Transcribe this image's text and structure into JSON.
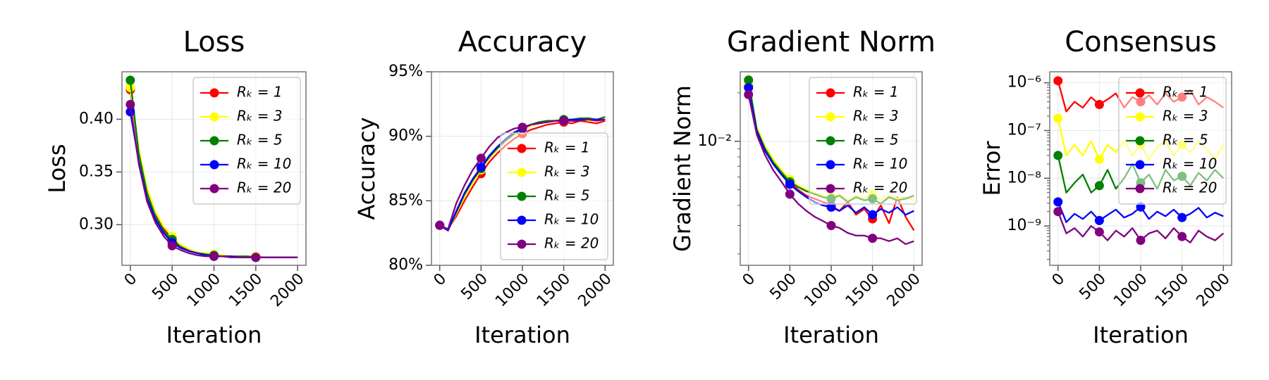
{
  "chart_data": [
    {
      "type": "line",
      "title": "Loss",
      "xlabel": "Iteration",
      "ylabel": "Loss",
      "legend": "upper right",
      "grid": true,
      "yscale": "linear",
      "markevery": 5,
      "x": [
        0,
        100,
        200,
        300,
        400,
        500,
        600,
        700,
        800,
        900,
        1000,
        1100,
        1200,
        1300,
        1400,
        1500,
        1600,
        1700,
        1800,
        1900,
        2000
      ],
      "xlim": [
        -100,
        2100
      ],
      "xticks": [
        0,
        500,
        1000,
        1500,
        2000
      ],
      "ylim": [
        0.2615,
        0.445
      ],
      "yticks": [
        {
          "value": 0.3,
          "label": "0.30"
        },
        0.35,
        {
          "value": 0.4,
          "label": "0.40"
        }
      ],
      "series": [
        {
          "name": "Rₖ = 1",
          "color": "#ff0000",
          "values": [
            0.428,
            0.37,
            0.333,
            0.31,
            0.296,
            0.287,
            0.28,
            0.276,
            0.274,
            0.272,
            0.271,
            0.271,
            0.27,
            0.27,
            0.27,
            0.27,
            0.269,
            0.269,
            0.269,
            0.269,
            0.269
          ]
        },
        {
          "name": "Rₖ = 3",
          "color": "#ffff00",
          "values": [
            0.43,
            0.372,
            0.335,
            0.312,
            0.298,
            0.289,
            0.281,
            0.277,
            0.274,
            0.273,
            0.272,
            0.271,
            0.27,
            0.27,
            0.27,
            0.27,
            0.269,
            0.269,
            0.269,
            0.269,
            0.269
          ]
        },
        {
          "name": "Rₖ = 5",
          "color": "#008000",
          "values": [
            0.437,
            0.368,
            0.33,
            0.308,
            0.294,
            0.286,
            0.279,
            0.275,
            0.273,
            0.272,
            0.271,
            0.27,
            0.27,
            0.27,
            0.27,
            0.269,
            0.269,
            0.269,
            0.269,
            0.269,
            0.269
          ]
        },
        {
          "name": "Rₖ = 10",
          "color": "#0000ff",
          "values": [
            0.407,
            0.36,
            0.325,
            0.305,
            0.292,
            0.283,
            0.278,
            0.275,
            0.273,
            0.271,
            0.27,
            0.27,
            0.27,
            0.269,
            0.269,
            0.269,
            0.269,
            0.269,
            0.269,
            0.269,
            0.269
          ]
        },
        {
          "name": "Rₖ = 20",
          "color": "#800080",
          "values": [
            0.414,
            0.358,
            0.322,
            0.302,
            0.289,
            0.28,
            0.276,
            0.273,
            0.271,
            0.27,
            0.27,
            0.27,
            0.269,
            0.269,
            0.269,
            0.269,
            0.269,
            0.269,
            0.269,
            0.269,
            0.269
          ]
        }
      ]
    },
    {
      "type": "line",
      "title": "Accuracy",
      "xlabel": "Iteration",
      "ylabel": "Accuracy",
      "legend": "lower right",
      "grid": true,
      "yscale": "linear",
      "markevery": 5,
      "x": [
        0,
        100,
        200,
        300,
        400,
        500,
        600,
        700,
        800,
        900,
        1000,
        1100,
        1200,
        1300,
        1400,
        1500,
        1600,
        1700,
        1800,
        1900,
        2000
      ],
      "xlim": [
        -100,
        2100
      ],
      "xticks": [
        0,
        500,
        1000,
        1500,
        2000
      ],
      "ylim": [
        80,
        95
      ],
      "yticks": [
        {
          "value": 80,
          "label": "80%"
        },
        {
          "value": 85,
          "label": "85%"
        },
        {
          "value": 90,
          "label": "90%"
        },
        {
          "value": 95,
          "label": "95%"
        }
      ],
      "series": [
        {
          "name": "Rₖ = 1",
          "color": "#ff0000",
          "values": [
            83.1,
            82.8,
            83.8,
            85.0,
            86.1,
            87.1,
            88.0,
            88.7,
            89.3,
            89.8,
            90.2,
            90.5,
            90.7,
            90.9,
            91.0,
            91.1,
            91.0,
            91.2,
            91.1,
            91.0,
            91.2
          ]
        },
        {
          "name": "Rₖ = 3",
          "color": "#ffff00",
          "values": [
            83.1,
            82.7,
            84.0,
            85.3,
            86.4,
            87.4,
            88.3,
            89.0,
            89.6,
            90.1,
            90.5,
            90.8,
            91.0,
            91.1,
            91.2,
            91.2,
            91.3,
            91.3,
            91.2,
            91.3,
            91.3
          ]
        },
        {
          "name": "Rₖ = 5",
          "color": "#008000",
          "values": [
            83.1,
            82.7,
            84.1,
            85.5,
            86.6,
            87.5,
            88.4,
            89.1,
            89.7,
            90.2,
            90.6,
            90.9,
            91.1,
            91.2,
            91.2,
            91.3,
            91.3,
            91.4,
            91.4,
            91.3,
            91.5
          ]
        },
        {
          "name": "Rₖ = 10",
          "color": "#0000ff",
          "values": [
            83.1,
            82.7,
            84.2,
            85.6,
            86.7,
            87.6,
            88.5,
            89.2,
            89.8,
            90.3,
            90.6,
            90.9,
            91.0,
            91.1,
            91.2,
            91.2,
            91.3,
            91.3,
            91.3,
            91.3,
            91.3
          ]
        },
        {
          "name": "Rₖ = 20",
          "color": "#800080",
          "values": [
            83.1,
            82.8,
            84.8,
            86.2,
            87.4,
            88.3,
            89.2,
            89.9,
            90.3,
            90.6,
            90.7,
            90.9,
            91.0,
            91.1,
            91.2,
            91.2,
            91.2,
            91.2,
            91.3,
            91.2,
            91.3
          ]
        }
      ]
    },
    {
      "type": "line",
      "title": "Gradient Norm",
      "xlabel": "Iteration",
      "ylabel": "Gradient Norm",
      "legend": "upper right",
      "grid": true,
      "yscale": "log",
      "markevery": 5,
      "x": [
        0,
        100,
        200,
        300,
        400,
        500,
        600,
        700,
        800,
        900,
        1000,
        1100,
        1200,
        1300,
        1400,
        1500,
        1600,
        1700,
        1800,
        1900,
        2000
      ],
      "xlim": [
        -100,
        2100
      ],
      "xticks": [
        0,
        500,
        1000,
        1500,
        2000
      ],
      "ylim": [
        0.0017,
        0.027
      ],
      "yticks": [
        {
          "value": 0.01,
          "label": "10⁻²"
        }
      ],
      "series": [
        {
          "name": "Rₖ = 1",
          "color": "#ff0000",
          "values": [
            0.0225,
            0.012,
            0.009,
            0.0074,
            0.0064,
            0.0056,
            0.005,
            0.0046,
            0.0044,
            0.0042,
            0.004,
            0.0037,
            0.0042,
            0.0035,
            0.0038,
            0.0033,
            0.004,
            0.0031,
            0.0045,
            0.0034,
            0.0028
          ]
        },
        {
          "name": "Rₖ = 3",
          "color": "#ffff00",
          "values": [
            0.023,
            0.0122,
            0.0093,
            0.0077,
            0.0066,
            0.0058,
            0.0053,
            0.005,
            0.0048,
            0.0046,
            0.0045,
            0.0047,
            0.0043,
            0.0046,
            0.0044,
            0.0047,
            0.0043,
            0.0046,
            0.0044,
            0.0045,
            0.0043
          ]
        },
        {
          "name": "Rₖ = 5",
          "color": "#008000",
          "values": [
            0.024,
            0.0118,
            0.009,
            0.0074,
            0.0064,
            0.0056,
            0.0052,
            0.0049,
            0.0047,
            0.0045,
            0.0044,
            0.0046,
            0.0042,
            0.0045,
            0.0043,
            0.0044,
            0.0041,
            0.0045,
            0.0043,
            0.0044,
            0.0046
          ]
        },
        {
          "name": "Rₖ = 10",
          "color": "#0000ff",
          "values": [
            0.0215,
            0.0115,
            0.0087,
            0.0072,
            0.0062,
            0.0054,
            0.0049,
            0.0045,
            0.0042,
            0.004,
            0.0039,
            0.0037,
            0.004,
            0.0036,
            0.0039,
            0.0035,
            0.0038,
            0.0036,
            0.0039,
            0.0035,
            0.0037
          ]
        },
        {
          "name": "Rₖ = 20",
          "color": "#800080",
          "values": [
            0.0195,
            0.011,
            0.0082,
            0.0066,
            0.0056,
            0.0047,
            0.0041,
            0.0037,
            0.0034,
            0.0032,
            0.003,
            0.0029,
            0.0027,
            0.0026,
            0.0026,
            0.0025,
            0.0025,
            0.0024,
            0.0025,
            0.0023,
            0.0024
          ]
        }
      ]
    },
    {
      "type": "line",
      "title": "Consensus",
      "xlabel": "Iteration",
      "ylabel": "Error",
      "legend": "upper right",
      "grid": true,
      "yscale": "log",
      "markevery": 5,
      "x": [
        0,
        100,
        200,
        300,
        400,
        500,
        600,
        700,
        800,
        900,
        1000,
        1100,
        1200,
        1300,
        1400,
        1500,
        1600,
        1700,
        1800,
        1900,
        2000
      ],
      "xlim": [
        -100,
        2100
      ],
      "xticks": [
        0,
        500,
        1000,
        1500,
        2000
      ],
      "ylim": [
        1.5e-10,
        1.7e-06
      ],
      "yticks": [
        {
          "value": 1e-09,
          "label": "10⁻⁹"
        },
        {
          "value": 1e-08,
          "label": "10⁻⁸"
        },
        {
          "value": 1e-07,
          "label": "10⁻⁷"
        },
        {
          "value": 1e-06,
          "label": "10⁻⁶"
        }
      ],
      "series": [
        {
          "name": "Rₖ = 1",
          "color": "#ff0000",
          "values": [
            1.1e-06,
            2.5e-07,
            4e-07,
            3e-07,
            5e-07,
            3.5e-07,
            4.5e-07,
            6e-07,
            3e-07,
            5e-07,
            4e-07,
            5.5e-07,
            3.5e-07,
            6e-07,
            4e-07,
            5e-07,
            7e-07,
            3.5e-07,
            5e-07,
            4e-07,
            3e-07
          ]
        },
        {
          "name": "Rₖ = 3",
          "color": "#ffff00",
          "values": [
            1.8e-07,
            3e-08,
            5e-08,
            3e-08,
            6e-08,
            2.5e-08,
            5e-08,
            3.5e-08,
            6e-08,
            3e-08,
            5e-08,
            2.5e-08,
            4.5e-08,
            6e-08,
            3e-08,
            5e-08,
            3.5e-08,
            6e-08,
            4e-08,
            2.5e-08,
            5e-08
          ]
        },
        {
          "name": "Rₖ = 5",
          "color": "#008000",
          "values": [
            3e-08,
            5e-09,
            8e-09,
            1.2e-08,
            5e-09,
            7e-09,
            1.5e-08,
            6e-09,
            1e-08,
            2e-08,
            8e-09,
            1.2e-08,
            6e-09,
            1.5e-08,
            9e-09,
            1.1e-08,
            7e-09,
            1.3e-08,
            9e-09,
            1.5e-08,
            1e-08
          ]
        },
        {
          "name": "Rₖ = 10",
          "color": "#0000ff",
          "values": [
            3.2e-09,
            1.2e-09,
            1.8e-09,
            1.4e-09,
            2e-09,
            1.3e-09,
            1.7e-09,
            2.2e-09,
            1.5e-09,
            1.8e-09,
            2.5e-09,
            1.4e-09,
            2e-09,
            1.6e-09,
            2.2e-09,
            1.5e-09,
            1.8e-09,
            2.4e-09,
            1.5e-09,
            1.9e-09,
            1.6e-09
          ]
        },
        {
          "name": "Rₖ = 20",
          "color": "#800080",
          "values": [
            2e-09,
            7e-10,
            9e-10,
            6e-10,
            1e-09,
            7.5e-10,
            5e-10,
            8e-10,
            6e-10,
            9e-10,
            5e-10,
            7e-10,
            8e-10,
            5.5e-10,
            9e-10,
            6e-10,
            4.5e-10,
            8e-10,
            6e-10,
            5e-10,
            7e-10
          ]
        }
      ]
    }
  ]
}
